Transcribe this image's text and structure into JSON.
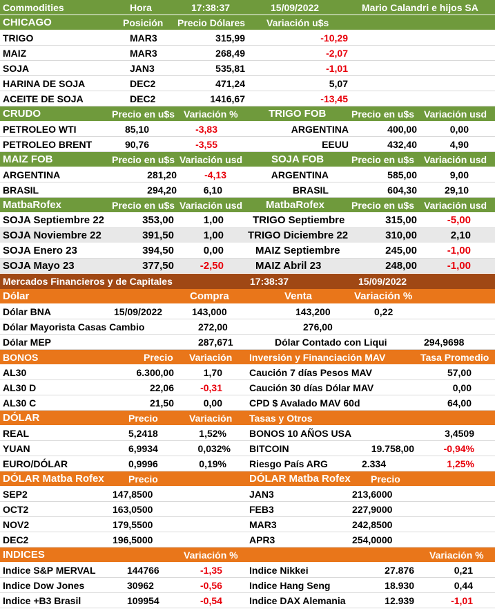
{
  "colors": {
    "green": "#6f9a3c",
    "orange": "#e9761a",
    "brown": "#a04814",
    "negative": "#e8000b",
    "gray": "#e8e8e8"
  },
  "header": {
    "title": "Commodities",
    "hora_label": "Hora",
    "time": "17:38:37",
    "date": "15/09/2022",
    "company": "Mario Calandri e hijos SA"
  },
  "chicago": {
    "title": "CHICAGO",
    "col_pos": "Posición",
    "col_price": "Precio Dólares",
    "col_var": "Variación u$s",
    "rows": [
      {
        "name": "TRIGO",
        "pos": "MAR3",
        "price": "315,99",
        "var": "-10,29"
      },
      {
        "name": "MAIZ",
        "pos": "MAR3",
        "price": "268,49",
        "var": "-2,07"
      },
      {
        "name": "SOJA",
        "pos": "JAN3",
        "price": "535,81",
        "var": "-1,01"
      },
      {
        "name": "HARINA DE SOJA",
        "pos": "DEC2",
        "price": "471,24",
        "var": "5,07"
      },
      {
        "name": "ACEITE DE SOJA",
        "pos": "DEC2",
        "price": "1416,67",
        "var": "-13,45"
      }
    ]
  },
  "crudo": {
    "title": "CRUDO",
    "col_price": "Precio en u$s",
    "col_var": "Variación %",
    "rows": [
      {
        "name": "PETROLEO WTI",
        "price": "85,10",
        "var": "-3,83"
      },
      {
        "name": "PETROLEO BRENT",
        "price": "90,76",
        "var": "-3,55"
      }
    ]
  },
  "trigo_fob": {
    "title": "TRIGO FOB",
    "col_price": "Precio en u$s",
    "col_var": "Variación usd",
    "rows": [
      {
        "name": "ARGENTINA",
        "price": "400,00",
        "var": "0,00"
      },
      {
        "name": "EEUU",
        "price": "432,40",
        "var": "4,90"
      }
    ]
  },
  "maiz_fob": {
    "title": "MAIZ FOB",
    "col_price": "Precio en u$s",
    "col_var": "Variación usd",
    "rows": [
      {
        "name": "ARGENTINA",
        "price": "281,20",
        "var": "-4,13"
      },
      {
        "name": "BRASIL",
        "price": "294,20",
        "var": "6,10"
      }
    ]
  },
  "soja_fob": {
    "title": "SOJA FOB",
    "col_price": "Precio en u$s",
    "col_var": "Variación usd",
    "rows": [
      {
        "name": "ARGENTINA",
        "price": "585,00",
        "var": "9,00"
      },
      {
        "name": "BRASIL",
        "price": "604,30",
        "var": "29,10"
      }
    ]
  },
  "matba_left": {
    "title": "MatbaRofex",
    "col_price": "Precio en u$s",
    "col_var": "Variación usd",
    "rows": [
      {
        "name": "SOJA Septiembre 22",
        "price": "353,00",
        "var": "1,00"
      },
      {
        "name": "SOJA Noviembre 22",
        "price": "391,50",
        "var": "1,00"
      },
      {
        "name": "SOJA Enero 23",
        "price": "394,50",
        "var": "0,00"
      },
      {
        "name": "SOJA Mayo 23",
        "price": "377,50",
        "var": "-2,50"
      }
    ]
  },
  "matba_right": {
    "title": "MatbaRofex",
    "col_price": "Precio en u$s",
    "col_var": "Variación usd",
    "rows": [
      {
        "name": "TRIGO Septiembre",
        "price": "315,00",
        "var": "-5,00"
      },
      {
        "name": "TRIGO Diciembre 22",
        "price": "310,00",
        "var": "2,10"
      },
      {
        "name": "MAIZ Septiembre",
        "price": "245,00",
        "var": "-1,00"
      },
      {
        "name": "MAIZ Abril 23",
        "price": "248,00",
        "var": "-1,00"
      }
    ]
  },
  "mercados": {
    "title": "Mercados Financieros y de Capitales",
    "time": "17:38:37",
    "date": "15/09/2022"
  },
  "dolar": {
    "title": "Dólar",
    "col_buy": "Compra",
    "col_sell": "Venta",
    "col_var": "Variación %",
    "bna": {
      "name": "Dólar BNA",
      "date": "15/09/2022",
      "buy": "143,000",
      "sell": "143,200",
      "var": "0,22"
    },
    "mayorista": {
      "name": "Dólar Mayorista Casas Cambio",
      "buy": "272,00",
      "sell": "276,00"
    },
    "mep": {
      "name": "Dólar MEP",
      "value": "287,671",
      "ccl_label": "Dólar Contado con Liqui",
      "ccl_value": "294,9698"
    }
  },
  "bonos": {
    "title": "BONOS",
    "col_price": "Precio",
    "col_var": "Variación",
    "rows": [
      {
        "name": "AL30",
        "price": "6.300,00",
        "var": "1,70"
      },
      {
        "name": "AL30 D",
        "price": "22,06",
        "var": "-0,31"
      },
      {
        "name": "AL30 C",
        "price": "21,50",
        "var": "0,00"
      }
    ]
  },
  "inversion": {
    "title": "Inversión y Financiación MAV",
    "col_rate": "Tasa Promedio",
    "rows": [
      {
        "name": "Caución 7 días Pesos MAV",
        "rate": "57,00"
      },
      {
        "name": "Caución 30 días Dólar MAV",
        "rate": "0,00"
      },
      {
        "name": "CPD $ Avalado  MAV 60d",
        "rate": "64,00"
      }
    ]
  },
  "dolar_intl": {
    "title": "DÓLAR",
    "col_price": "Precio",
    "col_var": "Variación",
    "rows": [
      {
        "name": "REAL",
        "price": "5,2418",
        "var": "1,52%"
      },
      {
        "name": "YUAN",
        "price": "6,9934",
        "var": "0,032%"
      },
      {
        "name": "EURO/DÓLAR",
        "price": "0,9996",
        "var": "0,19%"
      }
    ]
  },
  "tasas": {
    "title": "Tasas y Otros",
    "rows": [
      {
        "name": "BONOS 10 AÑOS USA",
        "price": "",
        "var": "3,4509"
      },
      {
        "name": "BITCOIN",
        "price": "19.758,00",
        "var": "-0,94%"
      },
      {
        "name": "Riesgo País ARG",
        "price": "2.334",
        "var": "1,25%"
      }
    ]
  },
  "dolar_matba_left": {
    "title": "DÓLAR Matba Rofex",
    "col_price": "Precio",
    "rows": [
      {
        "name": "SEP2",
        "price": "147,8500"
      },
      {
        "name": "OCT2",
        "price": "163,0500"
      },
      {
        "name": "NOV2",
        "price": "179,5500"
      },
      {
        "name": "DEC2",
        "price": "196,5000"
      }
    ]
  },
  "dolar_matba_right": {
    "title": "DÓLAR Matba Rofex",
    "col_price": "Precio",
    "rows": [
      {
        "name": "JAN3",
        "price": "213,6000"
      },
      {
        "name": "FEB3",
        "price": "227,9000"
      },
      {
        "name": "MAR3",
        "price": "242,8500"
      },
      {
        "name": "APR3",
        "price": "254,0000"
      }
    ]
  },
  "indices": {
    "title": "INDICES",
    "col_var_left": "Variación %",
    "col_var_right": "Variación %",
    "rows": [
      {
        "left_name": "Indice S&P MERVAL",
        "left_value": "144766",
        "left_var": "-1,35",
        "right_name": "Indice Nikkei",
        "right_value": "27.876",
        "right_var": "0,21"
      },
      {
        "left_name": "Indice Dow Jones",
        "left_value": "30962",
        "left_var": "-0,56",
        "right_name": "Indice Hang Seng",
        "right_value": "18.930",
        "right_var": "0,44"
      },
      {
        "left_name": "Indice +B3 Brasil",
        "left_value": "109954",
        "left_var": "-0,54",
        "right_name": "Indice DAX Alemania",
        "right_value": "12.939",
        "right_var": "-1,01"
      }
    ]
  }
}
